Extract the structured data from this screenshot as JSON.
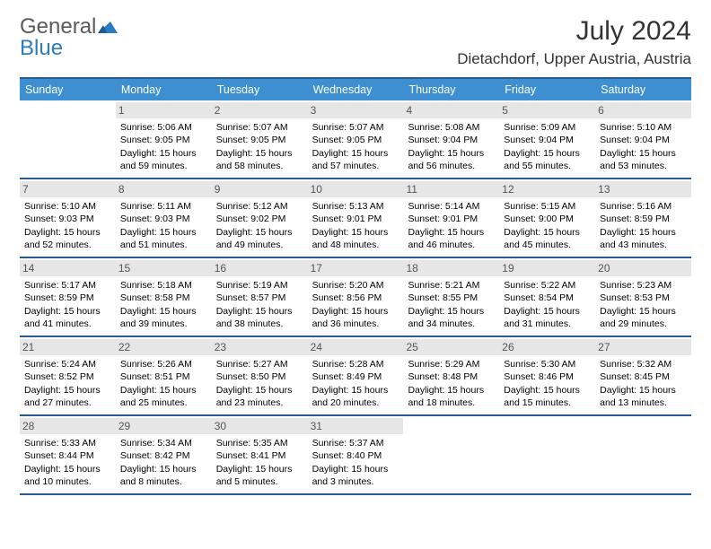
{
  "brand": {
    "word1": "General",
    "word2": "Blue"
  },
  "title": "July 2024",
  "location": "Dietachdorf, Upper Austria, Austria",
  "colors": {
    "header_bar": "#3d8fd1",
    "rule": "#285a8c",
    "date_bg": "#e6e6e6",
    "logo_gray": "#5a5a5a",
    "logo_blue": "#2d7bc0"
  },
  "day_names": [
    "Sunday",
    "Monday",
    "Tuesday",
    "Wednesday",
    "Thursday",
    "Friday",
    "Saturday"
  ],
  "weeks": [
    [
      {
        "date": "",
        "sunrise": "",
        "sunset": "",
        "daylight": ""
      },
      {
        "date": "1",
        "sunrise": "Sunrise: 5:06 AM",
        "sunset": "Sunset: 9:05 PM",
        "daylight": "Daylight: 15 hours and 59 minutes."
      },
      {
        "date": "2",
        "sunrise": "Sunrise: 5:07 AM",
        "sunset": "Sunset: 9:05 PM",
        "daylight": "Daylight: 15 hours and 58 minutes."
      },
      {
        "date": "3",
        "sunrise": "Sunrise: 5:07 AM",
        "sunset": "Sunset: 9:05 PM",
        "daylight": "Daylight: 15 hours and 57 minutes."
      },
      {
        "date": "4",
        "sunrise": "Sunrise: 5:08 AM",
        "sunset": "Sunset: 9:04 PM",
        "daylight": "Daylight: 15 hours and 56 minutes."
      },
      {
        "date": "5",
        "sunrise": "Sunrise: 5:09 AM",
        "sunset": "Sunset: 9:04 PM",
        "daylight": "Daylight: 15 hours and 55 minutes."
      },
      {
        "date": "6",
        "sunrise": "Sunrise: 5:10 AM",
        "sunset": "Sunset: 9:04 PM",
        "daylight": "Daylight: 15 hours and 53 minutes."
      }
    ],
    [
      {
        "date": "7",
        "sunrise": "Sunrise: 5:10 AM",
        "sunset": "Sunset: 9:03 PM",
        "daylight": "Daylight: 15 hours and 52 minutes."
      },
      {
        "date": "8",
        "sunrise": "Sunrise: 5:11 AM",
        "sunset": "Sunset: 9:03 PM",
        "daylight": "Daylight: 15 hours and 51 minutes."
      },
      {
        "date": "9",
        "sunrise": "Sunrise: 5:12 AM",
        "sunset": "Sunset: 9:02 PM",
        "daylight": "Daylight: 15 hours and 49 minutes."
      },
      {
        "date": "10",
        "sunrise": "Sunrise: 5:13 AM",
        "sunset": "Sunset: 9:01 PM",
        "daylight": "Daylight: 15 hours and 48 minutes."
      },
      {
        "date": "11",
        "sunrise": "Sunrise: 5:14 AM",
        "sunset": "Sunset: 9:01 PM",
        "daylight": "Daylight: 15 hours and 46 minutes."
      },
      {
        "date": "12",
        "sunrise": "Sunrise: 5:15 AM",
        "sunset": "Sunset: 9:00 PM",
        "daylight": "Daylight: 15 hours and 45 minutes."
      },
      {
        "date": "13",
        "sunrise": "Sunrise: 5:16 AM",
        "sunset": "Sunset: 8:59 PM",
        "daylight": "Daylight: 15 hours and 43 minutes."
      }
    ],
    [
      {
        "date": "14",
        "sunrise": "Sunrise: 5:17 AM",
        "sunset": "Sunset: 8:59 PM",
        "daylight": "Daylight: 15 hours and 41 minutes."
      },
      {
        "date": "15",
        "sunrise": "Sunrise: 5:18 AM",
        "sunset": "Sunset: 8:58 PM",
        "daylight": "Daylight: 15 hours and 39 minutes."
      },
      {
        "date": "16",
        "sunrise": "Sunrise: 5:19 AM",
        "sunset": "Sunset: 8:57 PM",
        "daylight": "Daylight: 15 hours and 38 minutes."
      },
      {
        "date": "17",
        "sunrise": "Sunrise: 5:20 AM",
        "sunset": "Sunset: 8:56 PM",
        "daylight": "Daylight: 15 hours and 36 minutes."
      },
      {
        "date": "18",
        "sunrise": "Sunrise: 5:21 AM",
        "sunset": "Sunset: 8:55 PM",
        "daylight": "Daylight: 15 hours and 34 minutes."
      },
      {
        "date": "19",
        "sunrise": "Sunrise: 5:22 AM",
        "sunset": "Sunset: 8:54 PM",
        "daylight": "Daylight: 15 hours and 31 minutes."
      },
      {
        "date": "20",
        "sunrise": "Sunrise: 5:23 AM",
        "sunset": "Sunset: 8:53 PM",
        "daylight": "Daylight: 15 hours and 29 minutes."
      }
    ],
    [
      {
        "date": "21",
        "sunrise": "Sunrise: 5:24 AM",
        "sunset": "Sunset: 8:52 PM",
        "daylight": "Daylight: 15 hours and 27 minutes."
      },
      {
        "date": "22",
        "sunrise": "Sunrise: 5:26 AM",
        "sunset": "Sunset: 8:51 PM",
        "daylight": "Daylight: 15 hours and 25 minutes."
      },
      {
        "date": "23",
        "sunrise": "Sunrise: 5:27 AM",
        "sunset": "Sunset: 8:50 PM",
        "daylight": "Daylight: 15 hours and 23 minutes."
      },
      {
        "date": "24",
        "sunrise": "Sunrise: 5:28 AM",
        "sunset": "Sunset: 8:49 PM",
        "daylight": "Daylight: 15 hours and 20 minutes."
      },
      {
        "date": "25",
        "sunrise": "Sunrise: 5:29 AM",
        "sunset": "Sunset: 8:48 PM",
        "daylight": "Daylight: 15 hours and 18 minutes."
      },
      {
        "date": "26",
        "sunrise": "Sunrise: 5:30 AM",
        "sunset": "Sunset: 8:46 PM",
        "daylight": "Daylight: 15 hours and 15 minutes."
      },
      {
        "date": "27",
        "sunrise": "Sunrise: 5:32 AM",
        "sunset": "Sunset: 8:45 PM",
        "daylight": "Daylight: 15 hours and 13 minutes."
      }
    ],
    [
      {
        "date": "28",
        "sunrise": "Sunrise: 5:33 AM",
        "sunset": "Sunset: 8:44 PM",
        "daylight": "Daylight: 15 hours and 10 minutes."
      },
      {
        "date": "29",
        "sunrise": "Sunrise: 5:34 AM",
        "sunset": "Sunset: 8:42 PM",
        "daylight": "Daylight: 15 hours and 8 minutes."
      },
      {
        "date": "30",
        "sunrise": "Sunrise: 5:35 AM",
        "sunset": "Sunset: 8:41 PM",
        "daylight": "Daylight: 15 hours and 5 minutes."
      },
      {
        "date": "31",
        "sunrise": "Sunrise: 5:37 AM",
        "sunset": "Sunset: 8:40 PM",
        "daylight": "Daylight: 15 hours and 3 minutes."
      },
      {
        "date": "",
        "sunrise": "",
        "sunset": "",
        "daylight": ""
      },
      {
        "date": "",
        "sunrise": "",
        "sunset": "",
        "daylight": ""
      },
      {
        "date": "",
        "sunrise": "",
        "sunset": "",
        "daylight": ""
      }
    ]
  ]
}
